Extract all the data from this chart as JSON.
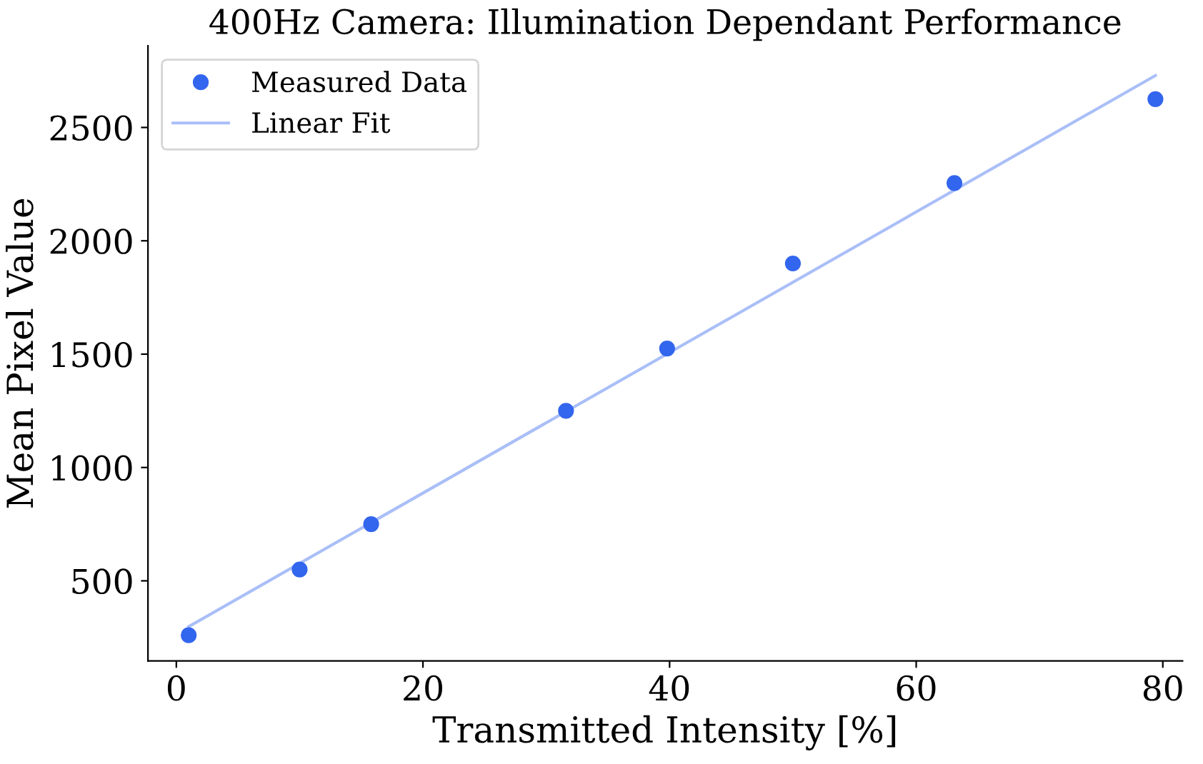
{
  "chart_data": {
    "type": "scatter",
    "title": "400Hz Camera: Illumination Dependant Performance",
    "xlabel": "Transmitted Intensity [%]",
    "ylabel": "Mean Pixel Value",
    "series": [
      {
        "name": "Measured Data",
        "color": "#3366ee",
        "marker": "circle",
        "x": [
          1,
          10,
          15.8,
          31.6,
          39.8,
          50,
          63.1,
          79.4
        ],
        "values": [
          260,
          550,
          750,
          1250,
          1525,
          1900,
          2255,
          2625
        ]
      },
      {
        "name": "Linear Fit",
        "type": "line",
        "color": "#aabff8",
        "line_style": "solid",
        "x": [
          1,
          79.4
        ],
        "values": [
          298,
          2729
        ]
      }
    ],
    "xlim": [
      -2.3,
      81.6
    ],
    "ylim": [
      147,
      2860
    ],
    "xticks": [
      0,
      20,
      40,
      60,
      80
    ],
    "yticks": [
      500,
      1000,
      1500,
      2000,
      2500
    ],
    "grid": false,
    "legend": "top left"
  }
}
